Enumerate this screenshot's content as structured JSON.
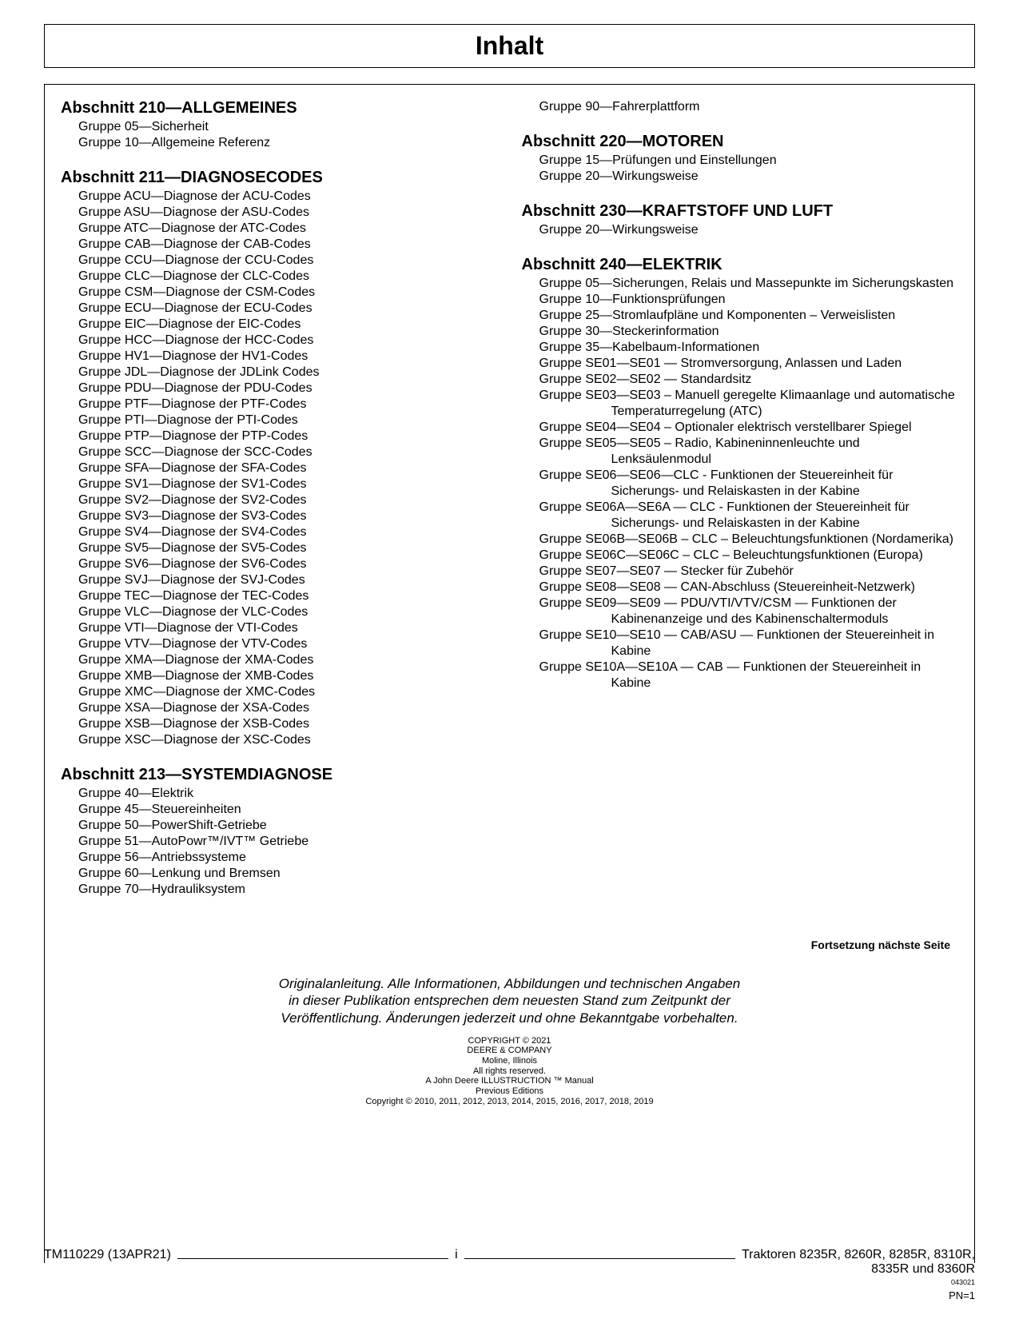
{
  "title": "Inhalt",
  "left_sections": [
    {
      "heading": "Abschnitt 210—ALLGEMEINES",
      "items": [
        "Gruppe 05—Sicherheit",
        "Gruppe 10—Allgemeine Referenz"
      ]
    },
    {
      "heading": "Abschnitt 211—DIAGNOSECODES",
      "items": [
        "Gruppe ACU—Diagnose der ACU-Codes",
        "Gruppe ASU—Diagnose der ASU-Codes",
        "Gruppe ATC—Diagnose der ATC-Codes",
        "Gruppe CAB—Diagnose der CAB-Codes",
        "Gruppe CCU—Diagnose der CCU-Codes",
        "Gruppe CLC—Diagnose der CLC-Codes",
        "Gruppe CSM—Diagnose der CSM-Codes",
        "Gruppe ECU—Diagnose der ECU-Codes",
        "Gruppe EIC—Diagnose der EIC-Codes",
        "Gruppe HCC—Diagnose der HCC-Codes",
        "Gruppe HV1—Diagnose der HV1-Codes",
        "Gruppe JDL—Diagnose der JDLink Codes",
        "Gruppe PDU—Diagnose der PDU-Codes",
        "Gruppe PTF—Diagnose der PTF-Codes",
        "Gruppe PTI—Diagnose der PTI-Codes",
        "Gruppe PTP—Diagnose der PTP-Codes",
        "Gruppe SCC—Diagnose der SCC-Codes",
        "Gruppe SFA—Diagnose der SFA-Codes",
        "Gruppe SV1—Diagnose der SV1-Codes",
        "Gruppe SV2—Diagnose der SV2-Codes",
        "Gruppe SV3—Diagnose der SV3-Codes",
        "Gruppe SV4—Diagnose der SV4-Codes",
        "Gruppe SV5—Diagnose der SV5-Codes",
        "Gruppe SV6—Diagnose der SV6-Codes",
        "Gruppe SVJ—Diagnose der SVJ-Codes",
        "Gruppe TEC—Diagnose der TEC-Codes",
        "Gruppe VLC—Diagnose der VLC-Codes",
        "Gruppe VTI—Diagnose der VTI-Codes",
        "Gruppe VTV—Diagnose der VTV-Codes",
        "Gruppe XMA—Diagnose der XMA-Codes",
        "Gruppe XMB—Diagnose der XMB-Codes",
        "Gruppe XMC—Diagnose der XMC-Codes",
        "Gruppe XSA—Diagnose der XSA-Codes",
        "Gruppe XSB—Diagnose der XSB-Codes",
        "Gruppe XSC—Diagnose der XSC-Codes"
      ]
    },
    {
      "heading": "Abschnitt 213—SYSTEMDIAGNOSE",
      "items": [
        "Gruppe 40—Elektrik",
        "Gruppe 45—Steuereinheiten",
        "Gruppe 50—PowerShift-Getriebe",
        "Gruppe 51—AutoPowr™/IVT™ Getriebe",
        "Gruppe 56—Antriebssysteme",
        "Gruppe 60—Lenkung und Bremsen",
        "Gruppe 70—Hydrauliksystem"
      ]
    }
  ],
  "right_sections": [
    {
      "heading": "",
      "items": [
        "Gruppe 90—Fahrerplattform"
      ]
    },
    {
      "heading": "Abschnitt 220—MOTOREN",
      "items": [
        "Gruppe 15—Prüfungen und Einstellungen",
        "Gruppe 20—Wirkungsweise"
      ]
    },
    {
      "heading": "Abschnitt 230—KRAFTSTOFF UND LUFT",
      "items": [
        "Gruppe 20—Wirkungsweise"
      ]
    },
    {
      "heading": "Abschnitt 240—ELEKTRIK",
      "items": [
        "Gruppe 05—Sicherungen, Relais und Massepunkte im Sicherungskasten",
        "Gruppe 10—Funktionsprüfungen",
        "Gruppe 25—Stromlaufpläne und Komponenten – Verweislisten",
        "Gruppe 30—Steckerinformation",
        "Gruppe 35—Kabelbaum-Informationen",
        "Gruppe SE01—SE01 — Stromversorgung, Anlassen und Laden",
        "Gruppe SE02—SE02 — Standardsitz",
        "Gruppe SE03—SE03 – Manuell geregelte Klimaanlage und automatische Temperaturregelung (ATC)",
        "Gruppe SE04—SE04 – Optionaler elektrisch verstellbarer Spiegel",
        "Gruppe SE05—SE05 – Radio, Kabineninnenleuchte und Lenksäulenmodul",
        "Gruppe SE06—SE06—CLC - Funktionen der Steuereinheit für Sicherungs- und Relaiskasten in der Kabine",
        "Gruppe SE06A—SE6A — CLC - Funktionen der Steuereinheit für Sicherungs- und Relaiskasten in der Kabine",
        "Gruppe SE06B—SE06B – CLC – Beleuchtungsfunktionen (Nordamerika)",
        "Gruppe SE06C—SE06C – CLC – Beleuchtungsfunktionen (Europa)",
        "Gruppe SE07—SE07 — Stecker für Zubehör",
        "Gruppe SE08—SE08 — CAN-Abschluss (Steuereinheit-Netzwerk)",
        "Gruppe SE09—SE09 — PDU/VTI/VTV/CSM — Funktionen der Kabinenanzeige und des Kabinenschaltermoduls",
        "Gruppe SE10—SE10 — CAB/ASU — Funktionen der Steuereinheit in Kabine",
        "Gruppe SE10A—SE10A — CAB — Funktionen der Steuereinheit in Kabine"
      ]
    }
  ],
  "continue_note": "Fortsetzung nächste Seite",
  "disclaimer": [
    "Originalanleitung. Alle Informationen, Abbildungen und technischen Angaben",
    "in dieser Publikation entsprechen dem neuesten Stand zum Zeitpunkt der",
    "Veröffentlichung. Änderungen jederzeit und ohne Bekanntgabe vorbehalten."
  ],
  "copyright": [
    "COPYRIGHT © 2021",
    "DEERE & COMPANY",
    "Moline, Illinois",
    "All rights reserved.",
    "A John Deere ILLUSTRUCTION ™ Manual",
    "Previous Editions",
    "Copyright © 2010, 2011, 2012, 2013, 2014, 2015, 2016, 2017, 2018, 2019"
  ],
  "footer": {
    "left": "TM110229 (13APR21)",
    "center": "i",
    "right1": "Traktoren 8235R, 8260R, 8285R, 8310R,",
    "right2": "8335R und 8360R",
    "small": "043021",
    "pn": "PN=1"
  }
}
